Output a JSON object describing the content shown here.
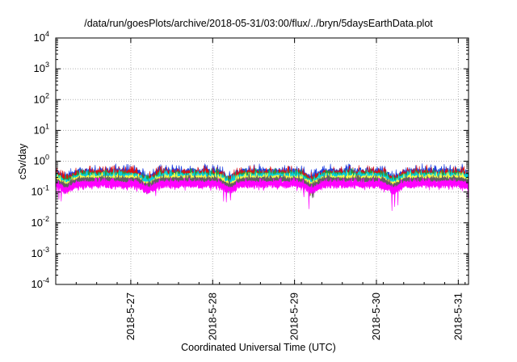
{
  "chart_data": {
    "type": "area",
    "title": "/data/run/goesPlots/archive/2018-05-31/03:00/flux/../bryn/5daysEarthData.plot",
    "xlabel": "Coordinated Universal Time (UTC)",
    "ylabel": "cSv/day",
    "y_scale": "log",
    "ylim": [
      "0.0001",
      "10000"
    ],
    "y_ticks": [
      {
        "base": "10",
        "exp": "-4"
      },
      {
        "base": "10",
        "exp": "-3"
      },
      {
        "base": "10",
        "exp": "-2"
      },
      {
        "base": "10",
        "exp": "-1"
      },
      {
        "base": "10",
        "exp": "0"
      },
      {
        "base": "10",
        "exp": "1"
      },
      {
        "base": "10",
        "exp": "2"
      },
      {
        "base": "10",
        "exp": "3"
      },
      {
        "base": "10",
        "exp": "4"
      }
    ],
    "xlim": [
      "2018-05-26T02:00",
      "2018-05-31T03:00"
    ],
    "x_ticks": [
      "2018-5-27",
      "2018-5-28",
      "2018-5-29",
      "2018-5-30",
      "2018-5-31"
    ],
    "grid": true,
    "daily_cycle_minimum_hour_utc": 5,
    "series": [
      {
        "color": "#2040e0",
        "typical": 0.45,
        "daily_peak": 0.85,
        "daily_min": 0.25
      },
      {
        "color": "#e01010",
        "typical": 0.4,
        "daily_peak": 0.75,
        "daily_min": 0.22
      },
      {
        "color": "#20a040",
        "typical": 0.36,
        "daily_peak": 0.6,
        "daily_min": 0.2
      },
      {
        "color": "#00d0e0",
        "typical": 0.33,
        "daily_peak": 0.55,
        "daily_min": 0.18
      },
      {
        "color": "#ffff40",
        "typical": 0.29,
        "daily_peak": 0.45,
        "daily_min": 0.16
      },
      {
        "color": "#606060",
        "typical": 0.26,
        "daily_peak": 0.38,
        "daily_min": 0.14
      },
      {
        "color": "#ff00ff",
        "typical": 0.2,
        "daily_peak": 0.3,
        "daily_min": 0.06
      }
    ]
  }
}
